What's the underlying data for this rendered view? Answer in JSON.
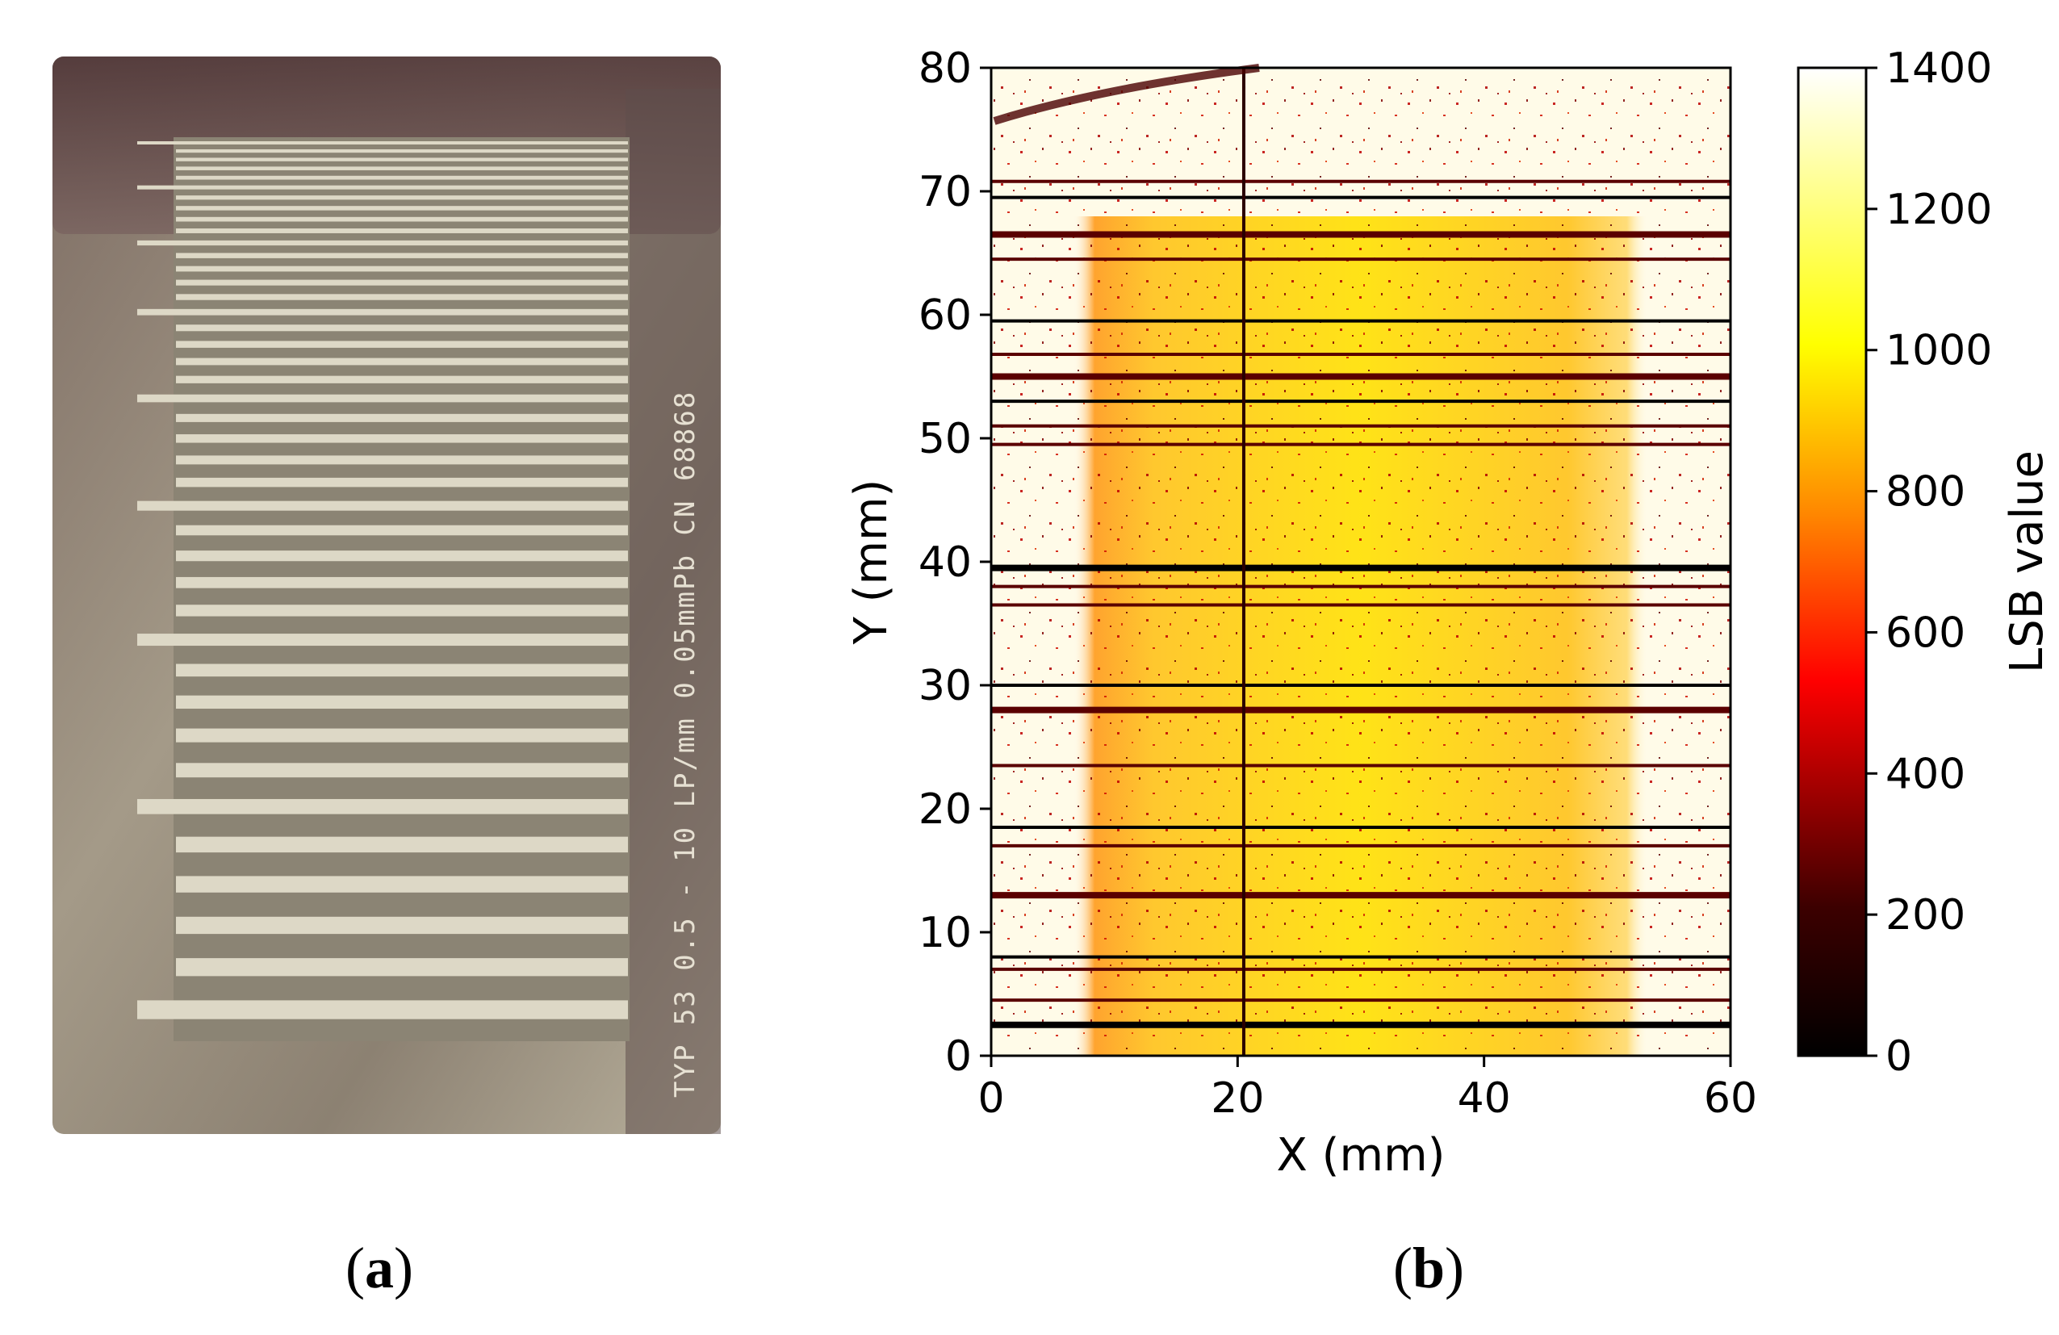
{
  "panel_a": {
    "label_open": "(",
    "label_letter": "a",
    "label_close": ")",
    "plate_text": "TYP 53   0.5 - 10 LP/mm   0.05mmPb   CN 68868"
  },
  "panel_b": {
    "label_open": "(",
    "label_letter": "b",
    "label_close": ")"
  },
  "chart_data": {
    "type": "heatmap",
    "xlabel": "X (mm)",
    "ylabel": "Y (mm)",
    "xlim": [
      0,
      60
    ],
    "ylim": [
      0,
      80
    ],
    "xticks": [
      0,
      20,
      40,
      60
    ],
    "yticks": [
      0,
      10,
      20,
      30,
      40,
      50,
      60,
      70,
      80
    ],
    "colorbar": {
      "label": "LSB value",
      "range": [
        0,
        1400
      ],
      "ticks": [
        0,
        200,
        400,
        600,
        800,
        1000,
        1200,
        1400
      ],
      "colormap": "hot"
    },
    "bright_region": {
      "x_range": [
        6,
        52
      ],
      "y_range": [
        0,
        72
      ],
      "level": 900
    },
    "background_level": 1400,
    "dark_rows_y": [
      2.5,
      4.5,
      7,
      8,
      13,
      17,
      18.5,
      23.5,
      28,
      30,
      36.5,
      38,
      39.5,
      49.5,
      51,
      53,
      55,
      56.8,
      59.5,
      64.5,
      66.5,
      69.5,
      70.8
    ],
    "dark_column_x": 20.5
  },
  "colors": {
    "hot_stops": [
      "#000000",
      "#ff0000",
      "#ffff00",
      "#ffffff"
    ]
  }
}
